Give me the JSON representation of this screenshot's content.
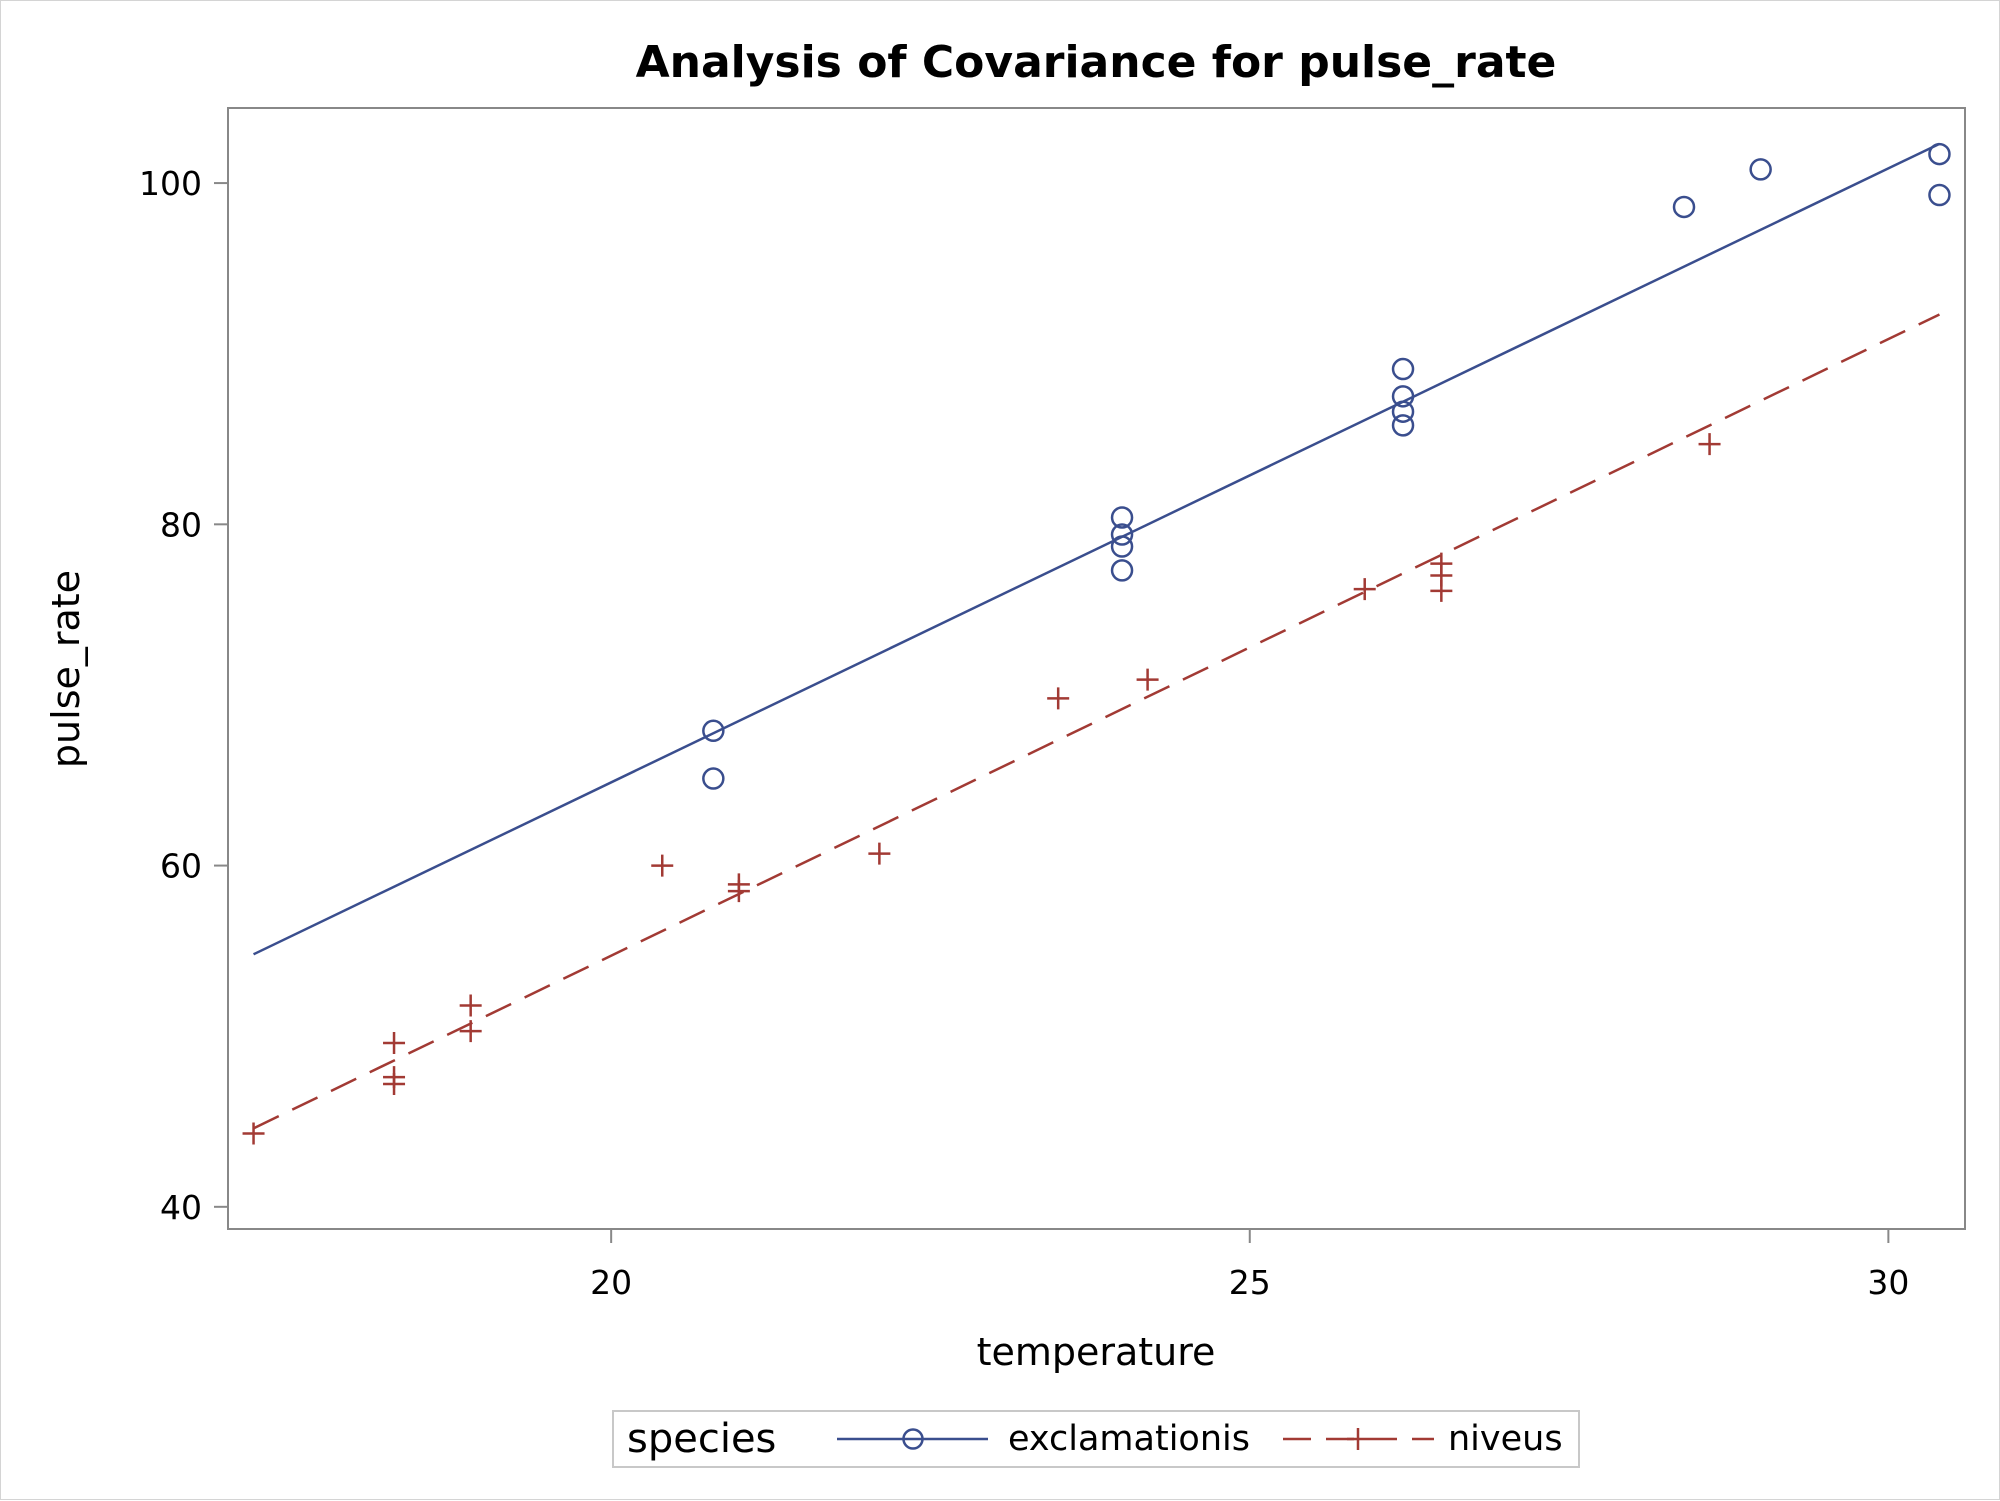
{
  "chart_data": {
    "type": "scatter",
    "title": "Analysis of Covariance for pulse_rate",
    "xlabel": "temperature",
    "ylabel": "pulse_rate",
    "xlim": [
      17.0,
      30.6
    ],
    "ylim": [
      38.7,
      104.4
    ],
    "xticks": [
      20,
      25,
      30
    ],
    "yticks": [
      40,
      60,
      80,
      100
    ],
    "grid": false,
    "legend": {
      "title": "species",
      "position": "bottom"
    },
    "series": [
      {
        "name": "exclamationis",
        "color": "#3a4e8e",
        "marker": "circle",
        "line_style": "solid",
        "points": [
          {
            "x": 20.8,
            "y": 67.9
          },
          {
            "x": 20.8,
            "y": 65.1
          },
          {
            "x": 24.0,
            "y": 77.3
          },
          {
            "x": 24.0,
            "y": 78.7
          },
          {
            "x": 24.0,
            "y": 79.4
          },
          {
            "x": 24.0,
            "y": 80.4
          },
          {
            "x": 26.2,
            "y": 85.8
          },
          {
            "x": 26.2,
            "y": 86.6
          },
          {
            "x": 26.2,
            "y": 87.5
          },
          {
            "x": 26.2,
            "y": 89.1
          },
          {
            "x": 28.4,
            "y": 98.6
          },
          {
            "x": 29.0,
            "y": 100.8
          },
          {
            "x": 30.4,
            "y": 99.3
          },
          {
            "x": 30.4,
            "y": 101.7
          }
        ],
        "fit_line": [
          {
            "x": 17.2,
            "y": 54.8
          },
          {
            "x": 30.4,
            "y": 102.3
          }
        ]
      },
      {
        "name": "niveus",
        "color": "#a23a34",
        "marker": "plus",
        "line_style": "dashed",
        "points": [
          {
            "x": 17.2,
            "y": 44.3
          },
          {
            "x": 18.3,
            "y": 47.2
          },
          {
            "x": 18.3,
            "y": 47.6
          },
          {
            "x": 18.3,
            "y": 49.6
          },
          {
            "x": 18.9,
            "y": 50.3
          },
          {
            "x": 18.9,
            "y": 51.8
          },
          {
            "x": 20.4,
            "y": 60.0
          },
          {
            "x": 21.0,
            "y": 58.5
          },
          {
            "x": 21.0,
            "y": 58.9
          },
          {
            "x": 22.1,
            "y": 60.7
          },
          {
            "x": 23.5,
            "y": 69.8
          },
          {
            "x": 24.2,
            "y": 70.9
          },
          {
            "x": 25.9,
            "y": 76.2
          },
          {
            "x": 26.5,
            "y": 76.1
          },
          {
            "x": 26.5,
            "y": 77.0
          },
          {
            "x": 26.5,
            "y": 77.7
          },
          {
            "x": 28.6,
            "y": 84.7
          }
        ],
        "fit_line": [
          {
            "x": 17.2,
            "y": 44.6
          },
          {
            "x": 30.4,
            "y": 92.3
          }
        ]
      }
    ]
  }
}
